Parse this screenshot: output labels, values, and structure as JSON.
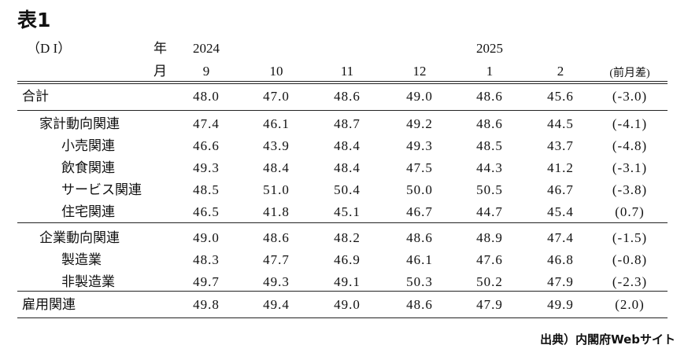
{
  "title": "表1",
  "header": {
    "di_label": "（D I）",
    "year_label": "年",
    "month_label": "月",
    "year_2024": "2024",
    "year_2025": "2025",
    "months": [
      "9",
      "10",
      "11",
      "12",
      "1",
      "2"
    ],
    "diff_label": "(前月差)"
  },
  "total": {
    "label": "合計",
    "values": [
      "48.0",
      "47.0",
      "48.6",
      "49.0",
      "48.6",
      "45.6"
    ],
    "diff": "(-3.0)"
  },
  "groups": [
    {
      "label": "家計動向関連",
      "values": [
        "47.4",
        "46.1",
        "48.7",
        "49.2",
        "48.6",
        "44.5"
      ],
      "diff": "(-4.1)",
      "items": [
        {
          "label": "小売関連",
          "values": [
            "46.6",
            "43.9",
            "48.4",
            "49.3",
            "48.5",
            "43.7"
          ],
          "diff": "(-4.8)"
        },
        {
          "label": "飲食関連",
          "values": [
            "49.3",
            "48.4",
            "48.4",
            "47.5",
            "44.3",
            "41.2"
          ],
          "diff": "(-3.1)"
        },
        {
          "label": "サービス関連",
          "values": [
            "48.5",
            "51.0",
            "50.4",
            "50.0",
            "50.5",
            "46.7"
          ],
          "diff": "(-3.8)"
        },
        {
          "label": "住宅関連",
          "values": [
            "46.5",
            "41.8",
            "45.1",
            "46.7",
            "44.7",
            "45.4"
          ],
          "diff": "(0.7)"
        }
      ]
    },
    {
      "label": "企業動向関連",
      "values": [
        "49.0",
        "48.6",
        "48.2",
        "48.6",
        "48.9",
        "47.4"
      ],
      "diff": "(-1.5)",
      "items": [
        {
          "label": "製造業",
          "values": [
            "48.3",
            "47.7",
            "46.9",
            "46.1",
            "47.6",
            "46.8"
          ],
          "diff": "(-0.8)"
        },
        {
          "label": "非製造業",
          "values": [
            "49.7",
            "49.3",
            "49.1",
            "50.3",
            "50.2",
            "47.9"
          ],
          "diff": "(-2.3)"
        }
      ]
    }
  ],
  "employment": {
    "label": "雇用関連",
    "values": [
      "49.8",
      "49.4",
      "49.0",
      "48.6",
      "47.9",
      "49.9"
    ],
    "diff": "(2.0)"
  },
  "source": "出典）内閣府Webサイト"
}
